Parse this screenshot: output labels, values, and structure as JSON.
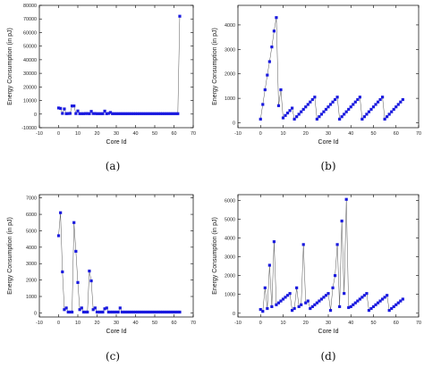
{
  "chart_data": [
    {
      "type": "line",
      "caption": "(a)",
      "xlabel": "Core Id",
      "ylabel": "Energy Consumption (in pJ)",
      "xlim": [
        -10,
        70
      ],
      "ylim": [
        -10000,
        80000
      ],
      "xticks": [
        -10,
        0,
        10,
        20,
        30,
        40,
        50,
        60,
        70
      ],
      "yticks": [
        -10000,
        0,
        10000,
        20000,
        30000,
        40000,
        50000,
        60000,
        70000,
        80000
      ],
      "grid": false,
      "marker": "square",
      "series": [
        {
          "x": [
            0,
            1,
            2,
            3,
            4,
            5,
            6,
            7,
            8,
            9,
            10,
            11,
            12,
            13,
            14,
            15,
            16,
            17,
            18,
            19,
            20,
            21,
            22,
            23,
            24,
            25,
            26,
            27,
            28,
            29,
            30,
            31,
            32,
            33,
            34,
            35,
            36,
            37,
            38,
            39,
            40,
            41,
            42,
            43,
            44,
            45,
            46,
            47,
            48,
            49,
            50,
            51,
            52,
            53,
            54,
            55,
            56,
            57,
            58,
            59,
            60,
            61,
            62,
            63
          ],
          "y": [
            4500,
            4200,
            500,
            3800,
            300,
            400,
            500,
            6000,
            6000,
            400,
            2300,
            300,
            300,
            300,
            400,
            400,
            300,
            2000,
            400,
            400,
            300,
            300,
            300,
            300,
            2200,
            300,
            500,
            1200,
            300,
            300,
            300,
            300,
            300,
            300,
            300,
            300,
            300,
            300,
            300,
            300,
            300,
            300,
            300,
            300,
            300,
            300,
            300,
            300,
            300,
            300,
            300,
            300,
            300,
            300,
            300,
            300,
            300,
            300,
            300,
            300,
            300,
            300,
            300,
            72000
          ]
        }
      ]
    },
    {
      "type": "line",
      "caption": "(b)",
      "xlabel": "Core Id",
      "ylabel": "Energy Consumption (in pJ)",
      "xlim": [
        -10,
        70
      ],
      "ylim": [
        -200,
        4800
      ],
      "xticks": [
        -10,
        0,
        10,
        20,
        30,
        40,
        50,
        60,
        70
      ],
      "yticks": [
        0,
        1000,
        2000,
        3000,
        4000
      ],
      "grid": false,
      "marker": "square",
      "series": [
        {
          "x": [
            0,
            1,
            2,
            3,
            4,
            5,
            6,
            7,
            8,
            9,
            10,
            11,
            12,
            13,
            14,
            15,
            16,
            17,
            18,
            19,
            20,
            21,
            22,
            23,
            24,
            25,
            26,
            27,
            28,
            29,
            30,
            31,
            32,
            33,
            34,
            35,
            36,
            37,
            38,
            39,
            40,
            41,
            42,
            43,
            44,
            45,
            46,
            47,
            48,
            49,
            50,
            51,
            52,
            53,
            54,
            55,
            56,
            57,
            58,
            59,
            60,
            61,
            62,
            63
          ],
          "y": [
            150,
            750,
            1350,
            1950,
            2500,
            3100,
            3750,
            4300,
            700,
            1350,
            200,
            300,
            400,
            500,
            600,
            150,
            250,
            350,
            450,
            550,
            650,
            750,
            850,
            950,
            1050,
            150,
            250,
            350,
            450,
            550,
            650,
            750,
            850,
            950,
            1050,
            150,
            250,
            350,
            450,
            550,
            650,
            750,
            850,
            950,
            1050,
            150,
            250,
            350,
            450,
            550,
            650,
            750,
            850,
            950,
            1050,
            150,
            250,
            350,
            450,
            550,
            650,
            750,
            850,
            950
          ]
        }
      ]
    },
    {
      "type": "line",
      "caption": "(c)",
      "xlabel": "Core Id",
      "ylabel": "Energy Consumption (in pJ)",
      "xlim": [
        -10,
        70
      ],
      "ylim": [
        -250,
        7200
      ],
      "xticks": [
        -10,
        0,
        10,
        20,
        30,
        40,
        50,
        60,
        70
      ],
      "yticks": [
        0,
        1000,
        2000,
        3000,
        4000,
        5000,
        6000,
        7000
      ],
      "grid": false,
      "marker": "square",
      "series": [
        {
          "x": [
            0,
            1,
            2,
            3,
            4,
            5,
            6,
            7,
            8,
            9,
            10,
            11,
            12,
            13,
            14,
            15,
            16,
            17,
            18,
            19,
            20,
            21,
            22,
            23,
            24,
            25,
            26,
            27,
            28,
            29,
            30,
            31,
            32,
            33,
            34,
            35,
            36,
            37,
            38,
            39,
            40,
            41,
            42,
            43,
            44,
            45,
            46,
            47,
            48,
            49,
            50,
            51,
            52,
            53,
            54,
            55,
            56,
            57,
            58,
            59,
            60,
            61,
            62,
            63
          ],
          "y": [
            4700,
            6100,
            2500,
            200,
            300,
            50,
            50,
            50,
            5500,
            3750,
            1850,
            200,
            300,
            50,
            50,
            50,
            2550,
            1950,
            200,
            300,
            50,
            50,
            50,
            50,
            250,
            300,
            50,
            50,
            50,
            50,
            50,
            50,
            300,
            50,
            50,
            50,
            50,
            50,
            50,
            50,
            50,
            50,
            50,
            50,
            50,
            50,
            50,
            50,
            50,
            50,
            50,
            50,
            50,
            50,
            50,
            50,
            50,
            50,
            50,
            50,
            50,
            50,
            50,
            50
          ]
        }
      ]
    },
    {
      "type": "line",
      "caption": "(d)",
      "xlabel": "Core Id",
      "ylabel": "Energy Consumption (in pJ)",
      "xlim": [
        -10,
        70
      ],
      "ylim": [
        -200,
        6300
      ],
      "xticks": [
        -10,
        0,
        10,
        20,
        30,
        40,
        50,
        60,
        70
      ],
      "yticks": [
        0,
        1000,
        2000,
        3000,
        4000,
        5000,
        6000
      ],
      "grid": false,
      "marker": "square",
      "series": [
        {
          "x": [
            0,
            1,
            2,
            3,
            4,
            5,
            6,
            7,
            8,
            9,
            10,
            11,
            12,
            13,
            14,
            15,
            16,
            17,
            18,
            19,
            20,
            21,
            22,
            23,
            24,
            25,
            26,
            27,
            28,
            29,
            30,
            31,
            32,
            33,
            34,
            35,
            36,
            37,
            38,
            39,
            40,
            41,
            42,
            43,
            44,
            45,
            46,
            47,
            48,
            49,
            50,
            51,
            52,
            53,
            54,
            55,
            56,
            57,
            58,
            59,
            60,
            61,
            62,
            63
          ],
          "y": [
            200,
            100,
            1350,
            250,
            2550,
            350,
            3800,
            450,
            550,
            650,
            750,
            850,
            950,
            1050,
            150,
            250,
            1350,
            350,
            450,
            3650,
            550,
            650,
            250,
            350,
            450,
            550,
            650,
            750,
            850,
            950,
            1050,
            150,
            1350,
            2000,
            3650,
            350,
            4900,
            1050,
            6050,
            300,
            350,
            450,
            550,
            650,
            750,
            850,
            950,
            1050,
            150,
            250,
            350,
            450,
            550,
            650,
            750,
            850,
            950,
            150,
            250,
            350,
            450,
            550,
            650,
            750
          ]
        }
      ]
    }
  ]
}
